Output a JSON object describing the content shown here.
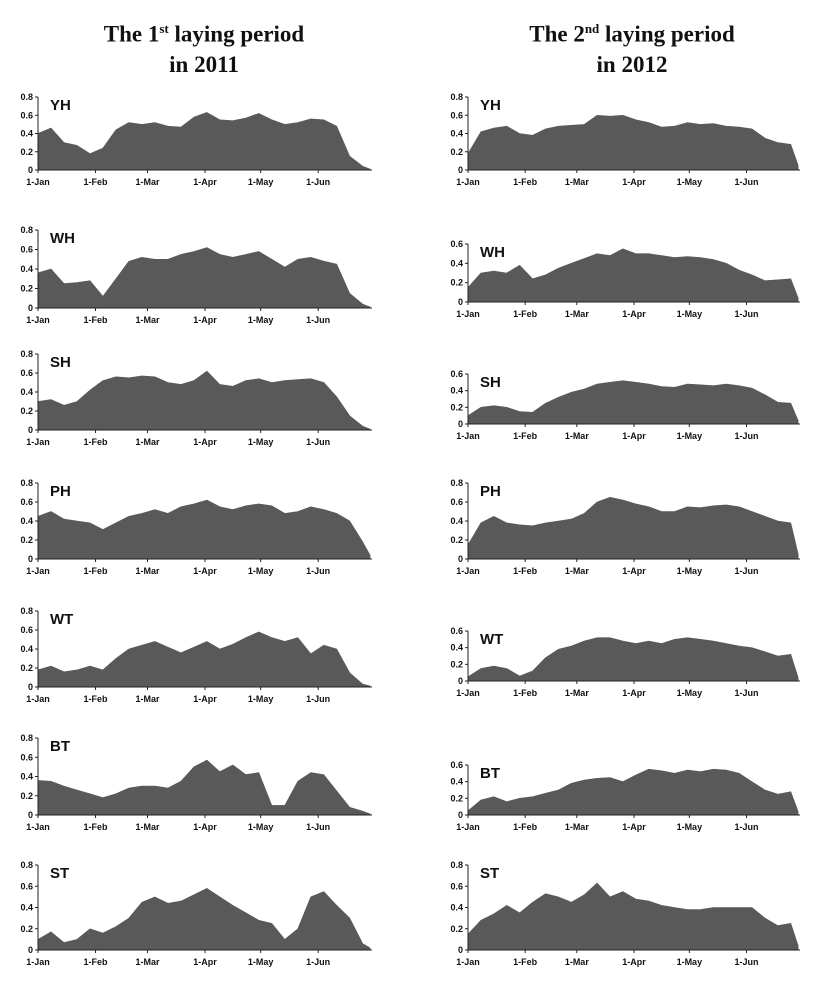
{
  "columns": [
    {
      "line1_prefix": "The 1",
      "line1_sup": "st",
      "line1_suffix": " laying period",
      "line2": "in 2011"
    },
    {
      "line1_prefix": "The 2",
      "line1_sup": "nd",
      "line1_suffix": " laying period",
      "line2": "in 2012"
    }
  ],
  "x_tick_labels": [
    "1-Jan",
    "1-Feb",
    "1-Mar",
    "1-Apr",
    "1-May",
    "1-Jun"
  ],
  "colors": {
    "fill": "#595959",
    "axis": "#222222"
  },
  "chart_data": [
    {
      "type": "area",
      "panel": "YH",
      "year": "2011",
      "ylim": [
        0,
        0.8
      ],
      "yticks": [
        "0",
        "0.2",
        "0.4",
        "0.6",
        "0.8"
      ],
      "x": [
        "1-Jan",
        "8-Jan",
        "15-Jan",
        "22-Jan",
        "29-Jan",
        "5-Feb",
        "12-Feb",
        "19-Feb",
        "26-Feb",
        "5-Mar",
        "12-Mar",
        "19-Mar",
        "26-Mar",
        "2-Apr",
        "9-Apr",
        "16-Apr",
        "23-Apr",
        "30-Apr",
        "7-May",
        "14-May",
        "21-May",
        "28-May",
        "4-Jun",
        "11-Jun",
        "18-Jun",
        "25-Jun",
        "29-Jun"
      ],
      "y": [
        0.4,
        0.46,
        0.3,
        0.27,
        0.18,
        0.24,
        0.44,
        0.52,
        0.5,
        0.52,
        0.48,
        0.47,
        0.58,
        0.63,
        0.55,
        0.54,
        0.57,
        0.62,
        0.55,
        0.5,
        0.52,
        0.56,
        0.55,
        0.48,
        0.15,
        0.04,
        0.01
      ]
    },
    {
      "type": "area",
      "panel": "YH",
      "year": "2012",
      "ylim": [
        0,
        0.8
      ],
      "yticks": [
        "0",
        "0.2",
        "0.4",
        "0.6",
        "0.8"
      ],
      "x": [
        "1-Jan",
        "8-Jan",
        "15-Jan",
        "22-Jan",
        "29-Jan",
        "5-Feb",
        "12-Feb",
        "19-Feb",
        "26-Feb",
        "5-Mar",
        "12-Mar",
        "19-Mar",
        "26-Mar",
        "2-Apr",
        "9-Apr",
        "16-Apr",
        "23-Apr",
        "30-Apr",
        "7-May",
        "14-May",
        "21-May",
        "28-May",
        "4-Jun",
        "11-Jun",
        "18-Jun",
        "25-Jun",
        "29-Jun"
      ],
      "y": [
        0.18,
        0.42,
        0.46,
        0.48,
        0.4,
        0.38,
        0.45,
        0.48,
        0.49,
        0.5,
        0.6,
        0.59,
        0.6,
        0.55,
        0.52,
        0.47,
        0.48,
        0.52,
        0.5,
        0.51,
        0.48,
        0.47,
        0.45,
        0.35,
        0.3,
        0.28,
        0.05
      ]
    },
    {
      "type": "area",
      "panel": "WH",
      "year": "2011",
      "ylim": [
        0,
        0.8
      ],
      "yticks": [
        "0",
        "0.2",
        "0.4",
        "0.6",
        "0.8"
      ],
      "x": [
        "1-Jan",
        "8-Jan",
        "15-Jan",
        "22-Jan",
        "29-Jan",
        "5-Feb",
        "12-Feb",
        "19-Feb",
        "26-Feb",
        "5-Mar",
        "12-Mar",
        "19-Mar",
        "26-Mar",
        "2-Apr",
        "9-Apr",
        "16-Apr",
        "23-Apr",
        "30-Apr",
        "7-May",
        "14-May",
        "21-May",
        "28-May",
        "4-Jun",
        "11-Jun",
        "18-Jun",
        "25-Jun",
        "29-Jun"
      ],
      "y": [
        0.36,
        0.4,
        0.25,
        0.26,
        0.28,
        0.12,
        0.3,
        0.48,
        0.52,
        0.5,
        0.5,
        0.55,
        0.58,
        0.62,
        0.55,
        0.52,
        0.55,
        0.58,
        0.5,
        0.42,
        0.5,
        0.52,
        0.48,
        0.45,
        0.15,
        0.04,
        0.01
      ]
    },
    {
      "type": "area",
      "panel": "WH",
      "year": "2012",
      "ylim": [
        0,
        0.6
      ],
      "yticks": [
        "0",
        "0.2",
        "0.4",
        "0.6"
      ],
      "x": [
        "1-Jan",
        "8-Jan",
        "15-Jan",
        "22-Jan",
        "29-Jan",
        "5-Feb",
        "12-Feb",
        "19-Feb",
        "26-Feb",
        "5-Mar",
        "12-Mar",
        "19-Mar",
        "26-Mar",
        "2-Apr",
        "9-Apr",
        "16-Apr",
        "23-Apr",
        "30-Apr",
        "7-May",
        "14-May",
        "21-May",
        "28-May",
        "4-Jun",
        "11-Jun",
        "18-Jun",
        "25-Jun",
        "29-Jun"
      ],
      "y": [
        0.15,
        0.3,
        0.32,
        0.3,
        0.38,
        0.24,
        0.28,
        0.35,
        0.4,
        0.45,
        0.5,
        0.48,
        0.55,
        0.5,
        0.5,
        0.48,
        0.46,
        0.47,
        0.46,
        0.44,
        0.4,
        0.33,
        0.28,
        0.22,
        0.23,
        0.24,
        0.04
      ]
    },
    {
      "type": "area",
      "panel": "SH",
      "year": "2011",
      "ylim": [
        0,
        0.8
      ],
      "yticks": [
        "0",
        "0.2",
        "0.4",
        "0.6",
        "0.8"
      ],
      "x": [
        "1-Jan",
        "8-Jan",
        "15-Jan",
        "22-Jan",
        "29-Jan",
        "5-Feb",
        "12-Feb",
        "19-Feb",
        "26-Feb",
        "5-Mar",
        "12-Mar",
        "19-Mar",
        "26-Mar",
        "2-Apr",
        "9-Apr",
        "16-Apr",
        "23-Apr",
        "30-Apr",
        "7-May",
        "14-May",
        "21-May",
        "28-May",
        "4-Jun",
        "11-Jun",
        "18-Jun",
        "25-Jun",
        "29-Jun"
      ],
      "y": [
        0.3,
        0.32,
        0.26,
        0.3,
        0.42,
        0.52,
        0.56,
        0.55,
        0.57,
        0.56,
        0.5,
        0.48,
        0.52,
        0.62,
        0.48,
        0.46,
        0.52,
        0.54,
        0.5,
        0.52,
        0.53,
        0.54,
        0.5,
        0.35,
        0.15,
        0.04,
        0.01
      ]
    },
    {
      "type": "area",
      "panel": "SH",
      "year": "2012",
      "ylim": [
        0,
        0.6
      ],
      "yticks": [
        "0",
        "0.2",
        "0.4",
        "0.6"
      ],
      "x": [
        "1-Jan",
        "8-Jan",
        "15-Jan",
        "22-Jan",
        "29-Jan",
        "5-Feb",
        "12-Feb",
        "19-Feb",
        "26-Feb",
        "5-Mar",
        "12-Mar",
        "19-Mar",
        "26-Mar",
        "2-Apr",
        "9-Apr",
        "16-Apr",
        "23-Apr",
        "30-Apr",
        "7-May",
        "14-May",
        "21-May",
        "28-May",
        "4-Jun",
        "11-Jun",
        "18-Jun",
        "25-Jun",
        "29-Jun"
      ],
      "y": [
        0.1,
        0.2,
        0.22,
        0.2,
        0.15,
        0.14,
        0.25,
        0.32,
        0.38,
        0.42,
        0.48,
        0.5,
        0.52,
        0.5,
        0.48,
        0.45,
        0.44,
        0.48,
        0.47,
        0.46,
        0.48,
        0.46,
        0.43,
        0.35,
        0.26,
        0.25,
        0.04
      ]
    },
    {
      "type": "area",
      "panel": "PH",
      "year": "2011",
      "ylim": [
        0,
        0.8
      ],
      "yticks": [
        "0",
        "0.2",
        "0.4",
        "0.6",
        "0.8"
      ],
      "x": [
        "1-Jan",
        "8-Jan",
        "15-Jan",
        "22-Jan",
        "29-Jan",
        "5-Feb",
        "12-Feb",
        "19-Feb",
        "26-Feb",
        "5-Mar",
        "12-Mar",
        "19-Mar",
        "26-Mar",
        "2-Apr",
        "9-Apr",
        "16-Apr",
        "23-Apr",
        "30-Apr",
        "7-May",
        "14-May",
        "21-May",
        "28-May",
        "4-Jun",
        "11-Jun",
        "18-Jun",
        "25-Jun",
        "29-Jun"
      ],
      "y": [
        0.45,
        0.5,
        0.42,
        0.4,
        0.38,
        0.31,
        0.38,
        0.45,
        0.48,
        0.52,
        0.48,
        0.55,
        0.58,
        0.62,
        0.55,
        0.52,
        0.56,
        0.58,
        0.56,
        0.48,
        0.5,
        0.55,
        0.52,
        0.48,
        0.4,
        0.18,
        0.04
      ]
    },
    {
      "type": "area",
      "panel": "PH",
      "year": "2012",
      "ylim": [
        0,
        0.8
      ],
      "yticks": [
        "0",
        "0.2",
        "0.4",
        "0.6",
        "0.8"
      ],
      "x": [
        "1-Jan",
        "8-Jan",
        "15-Jan",
        "22-Jan",
        "29-Jan",
        "5-Feb",
        "12-Feb",
        "19-Feb",
        "26-Feb",
        "5-Mar",
        "12-Mar",
        "19-Mar",
        "26-Mar",
        "2-Apr",
        "9-Apr",
        "16-Apr",
        "23-Apr",
        "30-Apr",
        "7-May",
        "14-May",
        "21-May",
        "28-May",
        "4-Jun",
        "11-Jun",
        "18-Jun",
        "25-Jun",
        "29-Jun"
      ],
      "y": [
        0.15,
        0.38,
        0.45,
        0.38,
        0.36,
        0.35,
        0.38,
        0.4,
        0.42,
        0.48,
        0.6,
        0.65,
        0.62,
        0.58,
        0.55,
        0.5,
        0.5,
        0.55,
        0.54,
        0.56,
        0.57,
        0.55,
        0.5,
        0.45,
        0.4,
        0.38,
        0.05
      ]
    },
    {
      "type": "area",
      "panel": "WT",
      "year": "2011",
      "ylim": [
        0,
        0.8
      ],
      "yticks": [
        "0",
        "0.2",
        "0.4",
        "0.6",
        "0.8"
      ],
      "x": [
        "1-Jan",
        "8-Jan",
        "15-Jan",
        "22-Jan",
        "29-Jan",
        "5-Feb",
        "12-Feb",
        "19-Feb",
        "26-Feb",
        "5-Mar",
        "12-Mar",
        "19-Mar",
        "26-Mar",
        "2-Apr",
        "9-Apr",
        "16-Apr",
        "23-Apr",
        "30-Apr",
        "7-May",
        "14-May",
        "21-May",
        "28-May",
        "4-Jun",
        "11-Jun",
        "18-Jun",
        "25-Jun",
        "29-Jun"
      ],
      "y": [
        0.18,
        0.22,
        0.16,
        0.18,
        0.22,
        0.18,
        0.3,
        0.4,
        0.44,
        0.48,
        0.42,
        0.36,
        0.42,
        0.48,
        0.4,
        0.45,
        0.52,
        0.58,
        0.52,
        0.48,
        0.52,
        0.35,
        0.44,
        0.4,
        0.15,
        0.03,
        0.01
      ]
    },
    {
      "type": "area",
      "panel": "WT",
      "year": "2012",
      "ylim": [
        0,
        0.6
      ],
      "yticks": [
        "0",
        "0.2",
        "0.4",
        "0.6"
      ],
      "x": [
        "1-Jan",
        "8-Jan",
        "15-Jan",
        "22-Jan",
        "29-Jan",
        "5-Feb",
        "12-Feb",
        "19-Feb",
        "26-Feb",
        "5-Mar",
        "12-Mar",
        "19-Mar",
        "26-Mar",
        "2-Apr",
        "9-Apr",
        "16-Apr",
        "23-Apr",
        "30-Apr",
        "7-May",
        "14-May",
        "21-May",
        "28-May",
        "4-Jun",
        "11-Jun",
        "18-Jun",
        "25-Jun",
        "29-Jun"
      ],
      "y": [
        0.05,
        0.15,
        0.18,
        0.15,
        0.06,
        0.12,
        0.28,
        0.38,
        0.42,
        0.48,
        0.52,
        0.52,
        0.48,
        0.45,
        0.48,
        0.45,
        0.5,
        0.52,
        0.5,
        0.48,
        0.45,
        0.42,
        0.4,
        0.35,
        0.3,
        0.32,
        0.04
      ]
    },
    {
      "type": "area",
      "panel": "BT",
      "year": "2011",
      "ylim": [
        0,
        0.8
      ],
      "yticks": [
        "0",
        "0.2",
        "0.4",
        "0.6",
        "0.8"
      ],
      "x": [
        "1-Jan",
        "8-Jan",
        "15-Jan",
        "22-Jan",
        "29-Jan",
        "5-Feb",
        "12-Feb",
        "19-Feb",
        "26-Feb",
        "5-Mar",
        "12-Mar",
        "19-Mar",
        "26-Mar",
        "2-Apr",
        "9-Apr",
        "16-Apr",
        "23-Apr",
        "30-Apr",
        "7-May",
        "14-May",
        "21-May",
        "28-May",
        "4-Jun",
        "11-Jun",
        "18-Jun",
        "25-Jun",
        "29-Jun"
      ],
      "y": [
        0.36,
        0.35,
        0.3,
        0.26,
        0.22,
        0.18,
        0.22,
        0.28,
        0.3,
        0.3,
        0.28,
        0.35,
        0.5,
        0.57,
        0.45,
        0.52,
        0.42,
        0.44,
        0.1,
        0.1,
        0.35,
        0.44,
        0.42,
        0.25,
        0.08,
        0.04,
        0.01
      ]
    },
    {
      "type": "area",
      "panel": "BT",
      "year": "2012",
      "ylim": [
        0,
        0.6
      ],
      "yticks": [
        "0",
        "0.2",
        "0.4",
        "0.6"
      ],
      "x": [
        "1-Jan",
        "8-Jan",
        "15-Jan",
        "22-Jan",
        "29-Jan",
        "5-Feb",
        "12-Feb",
        "19-Feb",
        "26-Feb",
        "5-Mar",
        "12-Mar",
        "19-Mar",
        "26-Mar",
        "2-Apr",
        "9-Apr",
        "16-Apr",
        "23-Apr",
        "30-Apr",
        "7-May",
        "14-May",
        "21-May",
        "28-May",
        "4-Jun",
        "11-Jun",
        "18-Jun",
        "25-Jun",
        "29-Jun"
      ],
      "y": [
        0.05,
        0.18,
        0.22,
        0.16,
        0.2,
        0.22,
        0.26,
        0.3,
        0.38,
        0.42,
        0.44,
        0.45,
        0.4,
        0.48,
        0.55,
        0.53,
        0.5,
        0.54,
        0.52,
        0.55,
        0.54,
        0.5,
        0.4,
        0.3,
        0.25,
        0.28,
        0.04
      ]
    },
    {
      "type": "area",
      "panel": "ST",
      "year": "2011",
      "ylim": [
        0,
        0.8
      ],
      "yticks": [
        "0",
        "0.2",
        "0.4",
        "0.6",
        "0.8"
      ],
      "x": [
        "1-Jan",
        "8-Jan",
        "15-Jan",
        "22-Jan",
        "29-Jan",
        "5-Feb",
        "12-Feb",
        "19-Feb",
        "26-Feb",
        "5-Mar",
        "12-Mar",
        "19-Mar",
        "26-Mar",
        "2-Apr",
        "9-Apr",
        "16-Apr",
        "23-Apr",
        "30-Apr",
        "7-May",
        "14-May",
        "21-May",
        "28-May",
        "4-Jun",
        "11-Jun",
        "18-Jun",
        "25-Jun",
        "29-Jun"
      ],
      "y": [
        0.1,
        0.17,
        0.07,
        0.1,
        0.2,
        0.16,
        0.22,
        0.3,
        0.45,
        0.5,
        0.44,
        0.46,
        0.52,
        0.58,
        0.5,
        0.42,
        0.35,
        0.28,
        0.25,
        0.1,
        0.2,
        0.5,
        0.55,
        0.42,
        0.3,
        0.06,
        0.02
      ]
    },
    {
      "type": "area",
      "panel": "ST",
      "year": "2012",
      "ylim": [
        0,
        0.8
      ],
      "yticks": [
        "0",
        "0.2",
        "0.4",
        "0.6",
        "0.8"
      ],
      "x": [
        "1-Jan",
        "8-Jan",
        "15-Jan",
        "22-Jan",
        "29-Jan",
        "5-Feb",
        "12-Feb",
        "19-Feb",
        "26-Feb",
        "5-Mar",
        "12-Mar",
        "19-Mar",
        "26-Mar",
        "2-Apr",
        "9-Apr",
        "16-Apr",
        "23-Apr",
        "30-Apr",
        "7-May",
        "14-May",
        "21-May",
        "28-May",
        "4-Jun",
        "11-Jun",
        "18-Jun",
        "25-Jun",
        "29-Jun"
      ],
      "y": [
        0.15,
        0.28,
        0.34,
        0.42,
        0.35,
        0.45,
        0.53,
        0.5,
        0.45,
        0.52,
        0.63,
        0.5,
        0.55,
        0.48,
        0.46,
        0.42,
        0.4,
        0.38,
        0.38,
        0.4,
        0.4,
        0.4,
        0.4,
        0.3,
        0.23,
        0.25,
        0.04
      ]
    }
  ]
}
